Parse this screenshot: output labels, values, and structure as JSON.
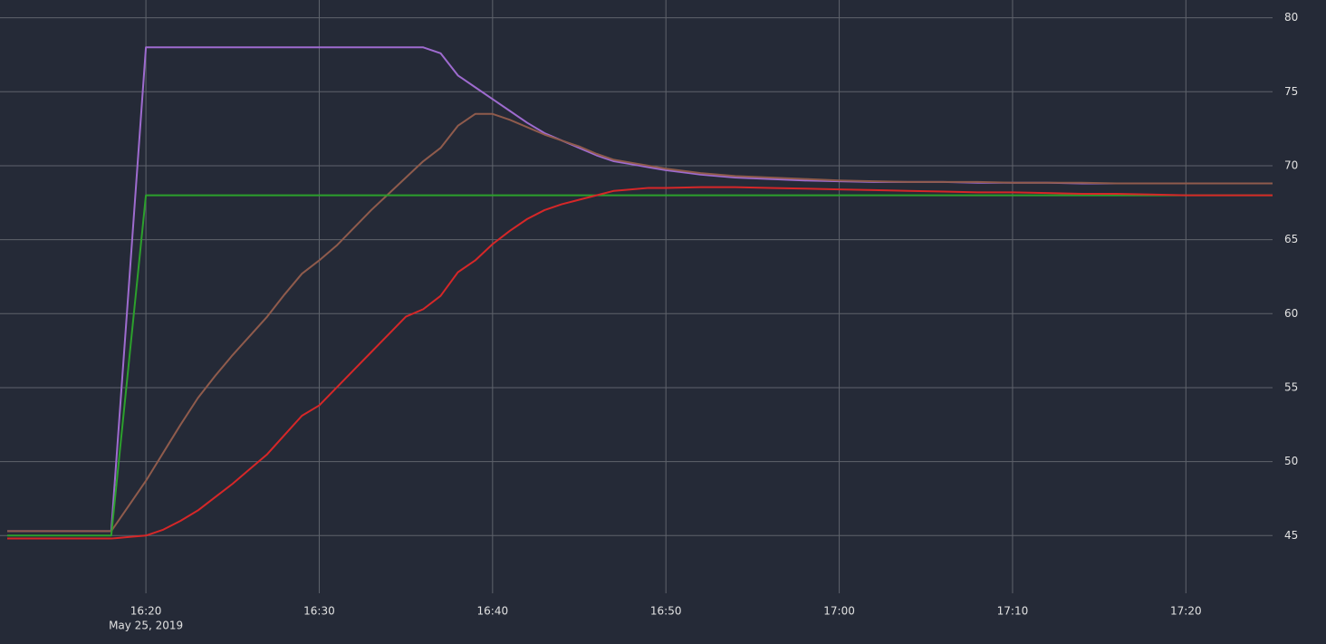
{
  "chart_data": {
    "type": "line",
    "x_date_label": "May 25, 2019",
    "x": [
      "16:12",
      "16:13",
      "16:14",
      "16:15",
      "16:16",
      "16:17",
      "16:18",
      "16:19",
      "16:20",
      "16:21",
      "16:22",
      "16:23",
      "16:24",
      "16:25",
      "16:26",
      "16:27",
      "16:28",
      "16:29",
      "16:30",
      "16:31",
      "16:32",
      "16:33",
      "16:34",
      "16:35",
      "16:36",
      "16:37",
      "16:38",
      "16:39",
      "16:40",
      "16:41",
      "16:42",
      "16:43",
      "16:44",
      "16:45",
      "16:46",
      "16:47",
      "16:48",
      "16:49",
      "16:50",
      "16:52",
      "16:54",
      "16:56",
      "16:58",
      "17:00",
      "17:02",
      "17:04",
      "17:06",
      "17:08",
      "17:10",
      "17:12",
      "17:14",
      "17:16",
      "17:18",
      "17:20",
      "17:22",
      "17:24",
      "17:25"
    ],
    "series": [
      {
        "color": "#9e6bcf",
        "values": [
          45.3,
          45.3,
          45.3,
          45.3,
          45.3,
          45.3,
          45.3,
          61.6,
          78,
          78,
          78,
          78,
          78,
          78,
          78,
          78,
          78,
          78,
          78,
          78,
          78,
          78,
          78,
          78,
          78,
          77.6,
          76.1,
          75.3,
          74.5,
          73.7,
          72.9,
          72.2,
          71.7,
          71.2,
          70.7,
          70.3,
          70.1,
          69.9,
          69.7,
          69.4,
          69.2,
          69.1,
          69.0,
          68.95,
          68.9,
          68.9,
          68.9,
          68.85,
          68.85,
          68.85,
          68.8,
          68.8,
          68.8,
          68.8,
          68.8,
          68.8,
          68.8
        ]
      },
      {
        "color": "#8f5b4c",
        "values": [
          45.3,
          45.3,
          45.3,
          45.3,
          45.3,
          45.3,
          45.3,
          47.0,
          48.7,
          50.6,
          52.5,
          54.3,
          55.8,
          57.2,
          58.5,
          59.8,
          61.3,
          62.7,
          63.6,
          64.6,
          65.8,
          67.0,
          68.1,
          69.2,
          70.3,
          71.2,
          72.7,
          73.5,
          73.5,
          73.1,
          72.6,
          72.1,
          71.7,
          71.3,
          70.8,
          70.4,
          70.2,
          70.0,
          69.8,
          69.5,
          69.3,
          69.2,
          69.1,
          69.0,
          68.95,
          68.9,
          68.9,
          68.9,
          68.85,
          68.85,
          68.85,
          68.8,
          68.8,
          68.8,
          68.8,
          68.8,
          68.8
        ]
      },
      {
        "color": "#2ca02c",
        "values": [
          45.0,
          45.0,
          45.0,
          45.0,
          45.0,
          45.0,
          45.0,
          56.5,
          68.0,
          68.0,
          68.0,
          68.0,
          68.0,
          68.0,
          68.0,
          68.0,
          68.0,
          68.0,
          68.0,
          68.0,
          68.0,
          68.0,
          68.0,
          68.0,
          68.0,
          68.0,
          68.0,
          68.0,
          68.0,
          68.0,
          68.0,
          68.0,
          68.0,
          68.0,
          68.0,
          68.0,
          68.0,
          68.0,
          68.0,
          68.0,
          68.0,
          68.0,
          68.0,
          68.0,
          68.0,
          68.0,
          68.0,
          68.0,
          68.0,
          68.0,
          68.0,
          68.0,
          68.0,
          68.0,
          68.0,
          68.0,
          68.0
        ]
      },
      {
        "color": "#d62728",
        "values": [
          44.8,
          44.8,
          44.8,
          44.8,
          44.8,
          44.8,
          44.8,
          44.9,
          45.0,
          45.4,
          46.0,
          46.7,
          47.6,
          48.5,
          49.5,
          50.5,
          51.8,
          53.1,
          53.8,
          55.0,
          56.2,
          57.4,
          58.6,
          59.8,
          60.3,
          61.2,
          62.8,
          63.6,
          64.7,
          65.6,
          66.4,
          67.0,
          67.4,
          67.7,
          68.0,
          68.3,
          68.4,
          68.5,
          68.5,
          68.55,
          68.55,
          68.5,
          68.45,
          68.4,
          68.35,
          68.3,
          68.25,
          68.2,
          68.2,
          68.15,
          68.1,
          68.1,
          68.05,
          68.0,
          68.0,
          68.0,
          68.0
        ]
      }
    ],
    "xlim": [
      "16:12",
      "17:25"
    ],
    "xticks": [
      "16:20",
      "16:30",
      "16:40",
      "16:50",
      "17:00",
      "17:10",
      "17:20"
    ],
    "ylim": [
      41.1,
      81.2
    ],
    "yticks": [
      45,
      50,
      55,
      60,
      65,
      70,
      75,
      80
    ],
    "grid": true
  }
}
